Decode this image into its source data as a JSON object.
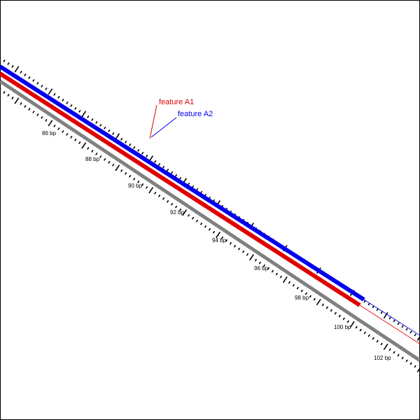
{
  "sequence_map": {
    "features": [
      {
        "label": "feature A1",
        "color": "#e00000"
      },
      {
        "label": "feature A2",
        "color": "#0000ee"
      }
    ],
    "strands": [
      {
        "name": "strand-blue",
        "color": "#0000ee"
      },
      {
        "name": "strand-red",
        "color": "#e00000"
      },
      {
        "name": "strand-gray",
        "color": "#808080"
      }
    ],
    "ruler": {
      "unit": "bp",
      "labels": [
        "86 bp",
        "88 bp",
        "90 bp",
        "92 bp",
        "94 bp",
        "96 bp",
        "98 bp",
        "100 bp",
        "102 bp"
      ]
    }
  }
}
